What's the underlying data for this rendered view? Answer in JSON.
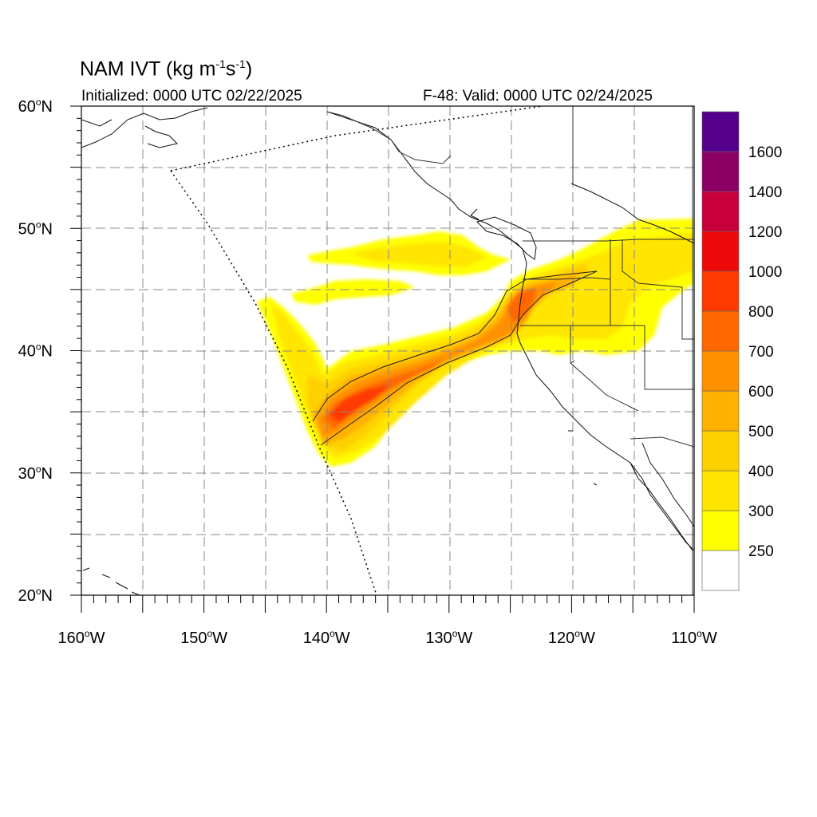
{
  "title": {
    "model": "NAM IVT",
    "units": "(kg m",
    "sup1": "-1",
    "mid": "s",
    "sup2": "-1",
    "close": ")"
  },
  "initialized": "Initialized: 0000 UTC 02/22/2025",
  "valid": "F-48: Valid: 0000 UTC 02/24/2025",
  "map": {
    "lon_range": [
      -160,
      -110
    ],
    "lat_range": [
      20,
      60
    ],
    "grid": "dashed every 5 degrees",
    "lat_ticks": [
      {
        "deg": "60",
        "unit": "o",
        "hemi": "N"
      },
      {
        "deg": "50",
        "unit": "o",
        "hemi": "N"
      },
      {
        "deg": "40",
        "unit": "o",
        "hemi": "N"
      },
      {
        "deg": "30",
        "unit": "o",
        "hemi": "N"
      },
      {
        "deg": "20",
        "unit": "o",
        "hemi": "N"
      }
    ],
    "lon_ticks": [
      {
        "deg": "160",
        "unit": "o",
        "hemi": "W"
      },
      {
        "deg": "150",
        "unit": "o",
        "hemi": "W"
      },
      {
        "deg": "140",
        "unit": "o",
        "hemi": "W"
      },
      {
        "deg": "130",
        "unit": "o",
        "hemi": "W"
      },
      {
        "deg": "120",
        "unit": "o",
        "hemi": "W"
      },
      {
        "deg": "110",
        "unit": "o",
        "hemi": "W"
      }
    ]
  },
  "colorbar": {
    "levels": [
      "250",
      "300",
      "400",
      "500",
      "600",
      "700",
      "800",
      "1000",
      "1200",
      "1400",
      "1600"
    ],
    "colors": [
      "#ffff00",
      "#ffe500",
      "#ffd000",
      "#ffb000",
      "#ff9000",
      "#ff6800",
      "#ff3a00",
      "#ee0a0a",
      "#c7003c",
      "#8c0064",
      "#55008c"
    ]
  }
}
